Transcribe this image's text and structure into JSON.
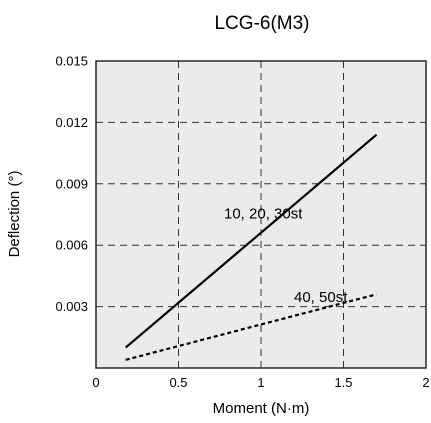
{
  "chart_data": {
    "type": "line",
    "title": "LCG-6(M3)",
    "xlabel": "Moment (N·m)",
    "ylabel": "Deflection (°)",
    "xlim": [
      0,
      2
    ],
    "ylim": [
      0,
      0.015
    ],
    "x_ticks": [
      "0",
      "0.5",
      "1",
      "1.5",
      "2"
    ],
    "y_ticks": [
      "0.003",
      "0.006",
      "0.009",
      "0.012",
      "0.015"
    ],
    "grid": true,
    "grid_style": "dashed",
    "plot_background": "#ebebeb",
    "series": [
      {
        "name": "10, 20, 30st",
        "style": "solid",
        "color": "#000000",
        "points": [
          [
            0.18,
            0.001
          ],
          [
            1.7,
            0.0114
          ]
        ]
      },
      {
        "name": "40, 50st",
        "style": "dotted",
        "color": "#000000",
        "points": [
          [
            0.18,
            0.0004
          ],
          [
            1.7,
            0.0036
          ]
        ]
      }
    ]
  }
}
